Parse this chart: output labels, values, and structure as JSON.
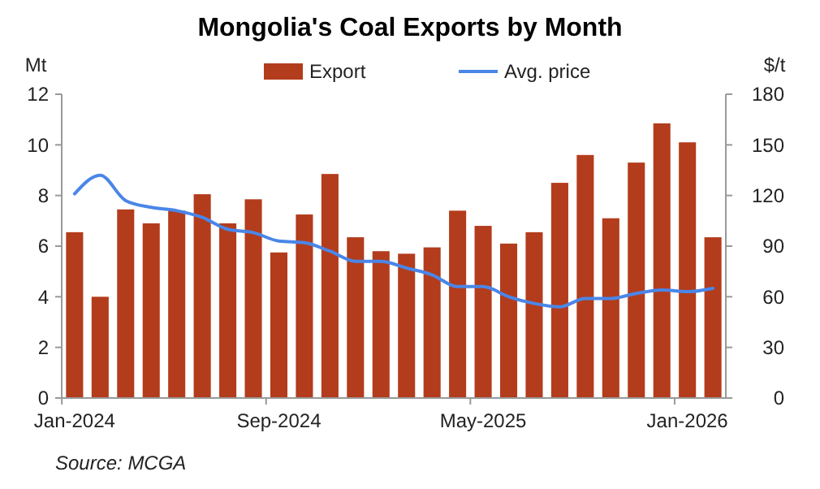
{
  "chart_data": {
    "type": "bar",
    "title": "Mongolia's Coal Exports by Month",
    "ylabel": "Mt",
    "y2label": "$/t",
    "categories": [
      "Jan-2024",
      null,
      null,
      null,
      null,
      null,
      null,
      null,
      "Sep-2024",
      null,
      null,
      null,
      null,
      null,
      null,
      null,
      "May-2025",
      null,
      null,
      null,
      null,
      null,
      null,
      null,
      "Jan-2026",
      null
    ],
    "series": [
      {
        "name": "Export",
        "color": "#b33c1c",
        "values": [
          6.55,
          4.0,
          7.45,
          6.9,
          7.4,
          8.05,
          6.9,
          7.85,
          5.75,
          7.25,
          8.85,
          6.35,
          5.8,
          5.7,
          5.95,
          7.4,
          6.8,
          6.1,
          6.55,
          8.5,
          9.6,
          7.1,
          9.3,
          10.85,
          10.1,
          6.35
        ]
      },
      {
        "name": "Avg. price",
        "type": "line",
        "axis": "y2",
        "color": "#4a86e8",
        "values": [
          121,
          132,
          117,
          113,
          111,
          107,
          100,
          98,
          93,
          92,
          87,
          81,
          81,
          77,
          73,
          66,
          66,
          60,
          56,
          54,
          59,
          59,
          62,
          64,
          63,
          65
        ]
      }
    ],
    "ylim": [
      0,
      12
    ],
    "yticks": [
      0,
      2,
      4,
      6,
      8,
      10,
      12
    ],
    "y2lim": [
      0,
      180
    ],
    "y2ticks": [
      0,
      30,
      60,
      90,
      120,
      150,
      180
    ],
    "legend": "top",
    "grid": false,
    "annotations": [
      "Source: MCGA"
    ]
  }
}
